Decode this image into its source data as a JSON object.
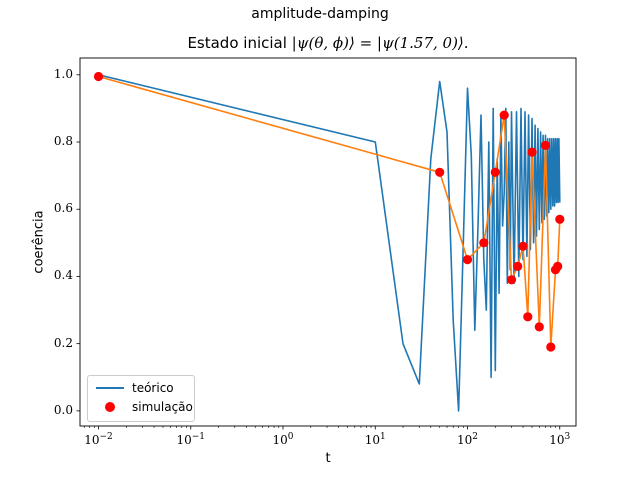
{
  "suptitle": "amplitude-damping",
  "chart_data": {
    "type": "line",
    "title_prefix": "Estado inicial ",
    "title_math": "|ψ(θ, ϕ)⟩ = |ψ(1.57, 0)⟩.",
    "xlabel": "t",
    "ylabel": "coerência",
    "xscale": "log",
    "xlim": [
      0.0063,
      1500
    ],
    "ylim": [
      -0.045,
      1.05
    ],
    "grid": false,
    "legend_position": "lower-left",
    "yticks": [
      "0.0",
      "0.2",
      "0.4",
      "0.6",
      "0.8",
      "1.0"
    ],
    "ytick_values": [
      0,
      0.2,
      0.4,
      0.6,
      0.8,
      1.0
    ],
    "xticks": [
      {
        "base": "10",
        "exp": "−2",
        "value": 0.01
      },
      {
        "base": "10",
        "exp": "−1",
        "value": 0.1
      },
      {
        "base": "10",
        "exp": "0",
        "value": 1
      },
      {
        "base": "10",
        "exp": "1",
        "value": 10
      },
      {
        "base": "10",
        "exp": "2",
        "value": 100
      },
      {
        "base": "10",
        "exp": "3",
        "value": 1000
      }
    ],
    "series": [
      {
        "name": "teórico",
        "color": "#1f77b4",
        "kind": "line",
        "x": [
          0.01,
          10,
          20,
          30,
          40,
          50,
          60,
          70,
          80,
          90,
          100,
          110,
          120,
          130,
          140,
          150,
          160,
          170,
          180,
          190,
          200,
          210,
          220,
          230,
          240,
          250,
          260,
          270,
          280,
          290,
          300,
          320,
          340,
          360,
          380,
          400,
          420,
          440,
          460,
          480,
          500,
          520,
          540,
          560,
          580,
          600,
          620,
          640,
          660,
          680,
          700,
          720,
          740,
          760,
          780,
          800,
          820,
          840,
          860,
          880,
          900,
          920,
          940,
          960,
          980,
          1000
        ],
        "y": [
          1.0,
          0.8,
          0.2,
          0.08,
          0.75,
          0.98,
          0.83,
          0.27,
          0.0,
          0.5,
          0.96,
          0.76,
          0.24,
          0.55,
          0.88,
          0.45,
          0.3,
          0.8,
          0.1,
          0.9,
          0.12,
          0.75,
          0.35,
          0.88,
          0.55,
          0.65,
          0.9,
          0.38,
          0.8,
          0.42,
          0.89,
          0.38,
          0.89,
          0.4,
          0.9,
          0.45,
          0.89,
          0.46,
          0.88,
          0.48,
          0.87,
          0.5,
          0.85,
          0.52,
          0.84,
          0.54,
          0.83,
          0.56,
          0.82,
          0.57,
          0.82,
          0.58,
          0.81,
          0.59,
          0.81,
          0.6,
          0.81,
          0.61,
          0.81,
          0.61,
          0.81,
          0.62,
          0.81,
          0.62,
          0.81,
          0.62
        ]
      },
      {
        "name": "",
        "color": "#ff7f0e",
        "kind": "line",
        "x": [
          0.01,
          50,
          100,
          150,
          200,
          250,
          300,
          350,
          400,
          450,
          500,
          600,
          700,
          800,
          900,
          950,
          1000
        ],
        "y": [
          0.995,
          0.71,
          0.45,
          0.5,
          0.71,
          0.88,
          0.39,
          0.43,
          0.49,
          0.28,
          0.77,
          0.25,
          0.79,
          0.19,
          0.42,
          0.43,
          0.57
        ]
      },
      {
        "name": "simulação",
        "color": "#ff0000",
        "kind": "scatter",
        "x": [
          0.01,
          50,
          100,
          150,
          200,
          250,
          300,
          350,
          400,
          450,
          500,
          600,
          700,
          800,
          900,
          950,
          1000
        ],
        "y": [
          0.995,
          0.71,
          0.45,
          0.5,
          0.71,
          0.88,
          0.39,
          0.43,
          0.49,
          0.28,
          0.77,
          0.25,
          0.79,
          0.19,
          0.42,
          0.43,
          0.57
        ]
      }
    ]
  }
}
